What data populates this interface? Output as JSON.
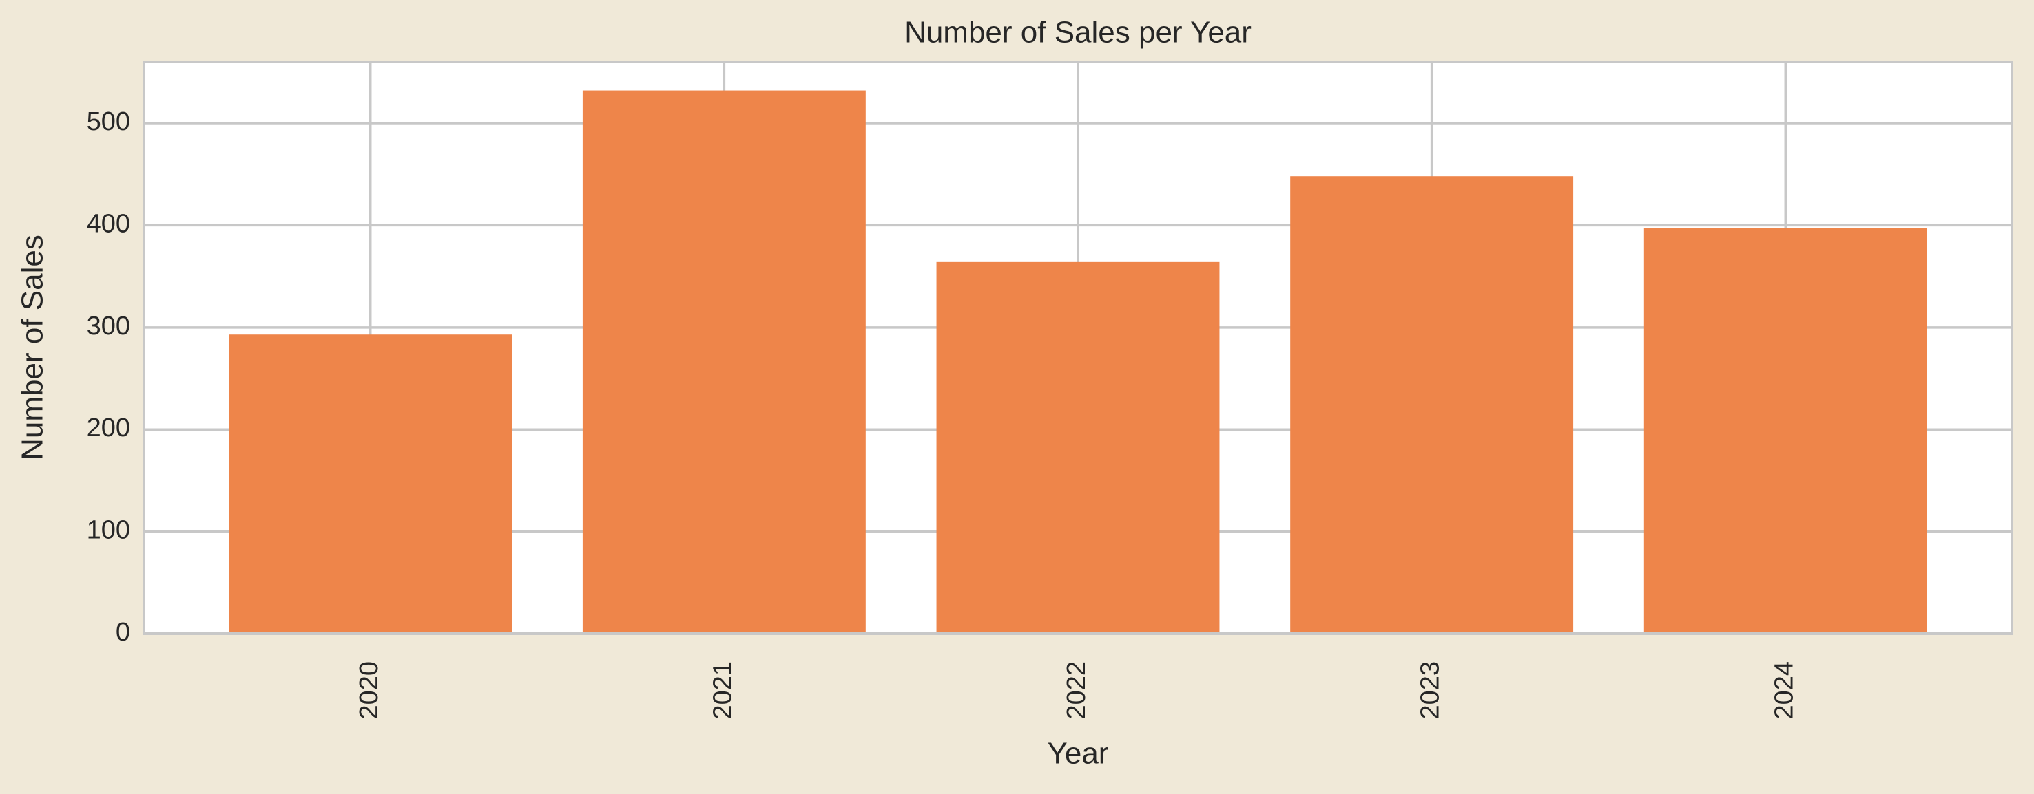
{
  "chart_data": {
    "type": "bar",
    "title": "Number of Sales per Year",
    "x_label": "Year",
    "y_label": "Number of Sales",
    "categories": [
      "2020",
      "2021",
      "2022",
      "2023",
      "2024"
    ],
    "values": [
      293,
      532,
      364,
      448,
      397
    ],
    "color": "#ee854a",
    "ylim": [
      0,
      560
    ],
    "yticks": [
      0,
      100,
      200,
      300,
      400,
      500
    ],
    "grid": true
  }
}
